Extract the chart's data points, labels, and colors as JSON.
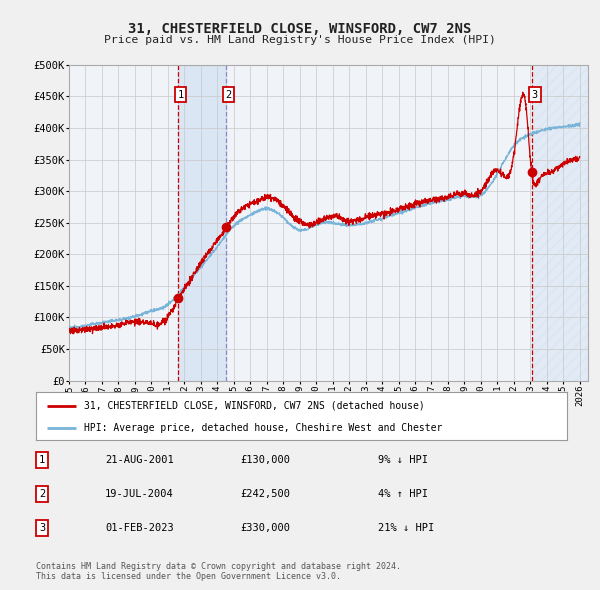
{
  "title": "31, CHESTERFIELD CLOSE, WINSFORD, CW7 2NS",
  "subtitle": "Price paid vs. HM Land Registry's House Price Index (HPI)",
  "ylim": [
    0,
    500000
  ],
  "yticks": [
    0,
    50000,
    100000,
    150000,
    200000,
    250000,
    300000,
    350000,
    400000,
    450000,
    500000
  ],
  "ytick_labels": [
    "£0",
    "£50K",
    "£100K",
    "£150K",
    "£200K",
    "£250K",
    "£300K",
    "£350K",
    "£400K",
    "£450K",
    "£500K"
  ],
  "x_start_year": 1995,
  "x_end_year": 2026,
  "hpi_color": "#7ab4d8",
  "price_color": "#cc0000",
  "marker_color": "#cc0000",
  "transaction_dates": [
    "2001-08-21",
    "2004-07-19",
    "2023-02-01"
  ],
  "transaction_prices": [
    130000,
    242500,
    330000
  ],
  "transaction_labels": [
    "1",
    "2",
    "3"
  ],
  "legend_property": "31, CHESTERFIELD CLOSE, WINSFORD, CW7 2NS (detached house)",
  "legend_hpi": "HPI: Average price, detached house, Cheshire West and Chester",
  "table_data": [
    [
      "1",
      "21-AUG-2001",
      "£130,000",
      "9% ↓ HPI"
    ],
    [
      "2",
      "19-JUL-2004",
      "£242,500",
      "4% ↑ HPI"
    ],
    [
      "3",
      "01-FEB-2023",
      "£330,000",
      "21% ↓ HPI"
    ]
  ],
  "footnote": "Contains HM Land Registry data © Crown copyright and database right 2024.\nThis data is licensed under the Open Government Licence v3.0.",
  "background_color": "#f0f0f0",
  "plot_bg_color": "#f0f4f8",
  "grid_color": "#c8c8c8",
  "shaded_region_color": "#c8dcf0",
  "vline1_color": "#cc0000",
  "vline2_color": "#8888cc",
  "vline3_color": "#cc0000",
  "hpi_anchors_x": [
    1995.0,
    1996.0,
    1997.0,
    1998.0,
    1999.0,
    2000.0,
    2001.0,
    2002.0,
    2003.0,
    2004.0,
    2005.0,
    2006.0,
    2007.0,
    2008.0,
    2009.0,
    2010.0,
    2011.0,
    2012.0,
    2013.0,
    2014.0,
    2015.0,
    2016.0,
    2017.0,
    2018.0,
    2019.0,
    2020.0,
    2021.0,
    2022.0,
    2023.0,
    2024.0,
    2025.0,
    2026.0
  ],
  "hpi_anchors_y": [
    83000,
    87000,
    92000,
    96000,
    102000,
    110000,
    120000,
    148000,
    180000,
    212000,
    245000,
    262000,
    272000,
    258000,
    238000,
    247000,
    250000,
    246000,
    250000,
    257000,
    265000,
    274000,
    281000,
    287000,
    292000,
    294000,
    328000,
    372000,
    390000,
    398000,
    402000,
    406000
  ],
  "price_anchors_x": [
    1995.0,
    1996.5,
    1998.0,
    1999.5,
    2001.0,
    2001.65,
    2002.5,
    2003.5,
    2004.55,
    2005.3,
    2006.3,
    2007.3,
    2008.0,
    2009.0,
    2009.8,
    2010.5,
    2011.3,
    2012.0,
    2013.0,
    2014.0,
    2015.0,
    2016.0,
    2017.0,
    2018.0,
    2019.0,
    2020.0,
    2021.0,
    2022.0,
    2022.7,
    2023.08,
    2023.5,
    2024.0,
    2025.0,
    2026.0
  ],
  "price_anchors_y": [
    78000,
    83000,
    88000,
    93000,
    100000,
    130000,
    165000,
    205000,
    242500,
    268000,
    282000,
    290000,
    276000,
    252000,
    248000,
    256000,
    259000,
    253000,
    258000,
    264000,
    271000,
    280000,
    286000,
    291000,
    296000,
    300000,
    333000,
    358000,
    442000,
    330000,
    318000,
    328000,
    342000,
    352000
  ]
}
